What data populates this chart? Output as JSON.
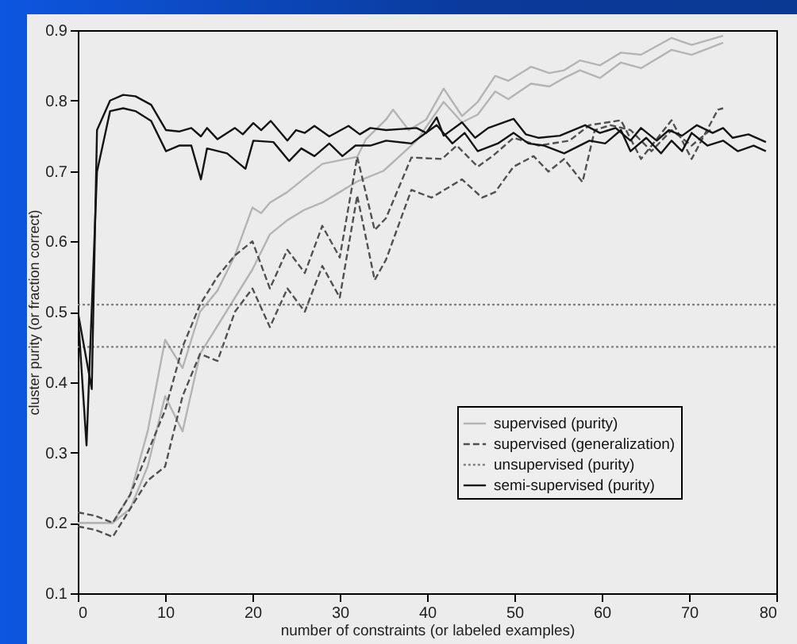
{
  "chart_data": {
    "type": "line",
    "xlabel": "number of constraints (or labeled examples)",
    "ylabel": "cluster purity (or fraction correct)",
    "xlim": [
      0,
      80
    ],
    "xticks": [
      0,
      10,
      20,
      30,
      40,
      50,
      60,
      70,
      80
    ],
    "ylim": [
      0.1,
      0.9
    ],
    "yticks": [
      0.1,
      0.2,
      0.3,
      0.4,
      0.5,
      0.6,
      0.7,
      0.8,
      0.9
    ],
    "legend": "bottom right",
    "series": [
      {
        "name": "supervised (purity)",
        "color": "#b4b4b4",
        "line_style": "solid",
        "x": [
          0,
          4,
          6,
          8,
          10,
          12,
          14,
          16,
          18,
          20,
          21,
          22,
          24,
          26,
          28,
          30,
          32,
          33,
          35.3,
          36.1,
          37.9,
          39.9,
          41.9,
          44,
          45.8,
          47.8,
          49.3,
          51.9,
          54,
          55.7,
          57.5,
          59.8,
          62.2,
          64.5,
          68,
          70.3,
          73.9
        ],
        "values": [
          0.2,
          0.2,
          0.24,
          0.33,
          0.46,
          0.42,
          0.5,
          0.53,
          0.58,
          0.648,
          0.64,
          0.655,
          0.67,
          0.69,
          0.71,
          0.715,
          0.72,
          0.745,
          0.773,
          0.787,
          0.758,
          0.773,
          0.817,
          0.778,
          0.798,
          0.835,
          0.828,
          0.848,
          0.839,
          0.843,
          0.857,
          0.85,
          0.868,
          0.865,
          0.889,
          0.879,
          0.892
        ]
      },
      {
        "color": "#b4b4b4",
        "line_style": "solid",
        "x": [
          0,
          4,
          6,
          8,
          10,
          12,
          14,
          16,
          18,
          20,
          22,
          24,
          26,
          28,
          30,
          32,
          35,
          38.8,
          41.9,
          44,
          45.8,
          47.8,
          49.3,
          51.9,
          54,
          55.7,
          57.5,
          59.8,
          62.2,
          64.5,
          68,
          70.3,
          73.9
        ],
        "values": [
          0.2,
          0.2,
          0.22,
          0.28,
          0.38,
          0.33,
          0.44,
          0.48,
          0.52,
          0.56,
          0.61,
          0.63,
          0.645,
          0.655,
          0.67,
          0.685,
          0.7,
          0.743,
          0.798,
          0.769,
          0.78,
          0.813,
          0.802,
          0.824,
          0.82,
          0.832,
          0.843,
          0.832,
          0.854,
          0.846,
          0.872,
          0.865,
          0.882
        ]
      },
      {
        "name": "supervised (generalization)",
        "color": "#505050",
        "line_style": "dashed",
        "x": [
          0,
          2,
          4,
          6,
          8,
          10,
          12,
          14,
          16,
          18,
          20,
          22,
          24,
          26,
          28,
          30,
          32,
          34,
          35.3,
          38.2,
          41.7,
          43.4,
          45.8,
          47.5,
          49.9,
          52.8,
          56.3,
          58.6,
          62.2,
          64.5,
          68,
          70.3,
          73.3,
          73.9
        ],
        "values": [
          0.215,
          0.21,
          0.2,
          0.24,
          0.3,
          0.36,
          0.45,
          0.51,
          0.55,
          0.58,
          0.6,
          0.533,
          0.588,
          0.555,
          0.622,
          0.577,
          0.72,
          0.616,
          0.633,
          0.719,
          0.717,
          0.736,
          0.706,
          0.721,
          0.747,
          0.736,
          0.743,
          0.765,
          0.772,
          0.717,
          0.772,
          0.717,
          0.787,
          0.789
        ]
      },
      {
        "color": "#505050",
        "line_style": "dashed",
        "x": [
          0,
          2,
          4,
          6,
          8,
          10,
          12,
          14,
          16,
          18,
          20,
          22,
          24,
          26,
          28,
          30,
          32,
          34,
          35.3,
          38.2,
          40.5,
          44,
          46.3,
          47.8,
          49.9,
          52.2,
          53.9,
          55.7,
          57.8,
          59.2,
          61,
          63.3,
          65.7,
          68,
          70.3,
          72.7
        ],
        "values": [
          0.195,
          0.19,
          0.18,
          0.22,
          0.26,
          0.28,
          0.38,
          0.44,
          0.43,
          0.5,
          0.533,
          0.478,
          0.533,
          0.5,
          0.565,
          0.52,
          0.665,
          0.545,
          0.574,
          0.673,
          0.662,
          0.688,
          0.662,
          0.67,
          0.706,
          0.721,
          0.699,
          0.717,
          0.684,
          0.758,
          0.765,
          0.758,
          0.728,
          0.758,
          0.736,
          0.761
        ]
      },
      {
        "name": "unsupervised (purity)",
        "color": "#808080",
        "line_style": "dotted",
        "x": [
          0,
          80
        ],
        "values": [
          0.51,
          0.51
        ]
      },
      {
        "color": "#808080",
        "line_style": "dotted",
        "x": [
          0,
          80
        ],
        "values": [
          0.45,
          0.45
        ]
      },
      {
        "name": "semi-supervised (purity)",
        "color": "#141414",
        "line_style": "solid",
        "x": [
          0,
          1.6,
          2.2,
          3.7,
          5.2,
          6.6,
          8.4,
          10.1,
          11.6,
          13,
          14.1,
          14.8,
          16,
          18,
          18.9,
          20.1,
          21,
          22.1,
          24,
          25,
          26,
          27.1,
          28.8,
          31,
          32.3,
          33.5,
          35.3,
          38.8,
          39.9,
          41.1,
          41.9,
          44,
          45.5,
          47,
          49.9,
          51.3,
          52.8,
          55.2,
          58.1,
          59.8,
          61.6,
          63.3,
          64.5,
          66.3,
          67.7,
          69.2,
          70.9,
          72.7,
          73.9,
          75,
          76.8,
          78.8
        ],
        "values": [
          0.5,
          0.39,
          0.758,
          0.8,
          0.808,
          0.806,
          0.794,
          0.758,
          0.756,
          0.761,
          0.749,
          0.761,
          0.745,
          0.761,
          0.752,
          0.768,
          0.758,
          0.771,
          0.743,
          0.758,
          0.754,
          0.764,
          0.749,
          0.764,
          0.752,
          0.761,
          0.758,
          0.761,
          0.754,
          0.776,
          0.75,
          0.769,
          0.747,
          0.761,
          0.774,
          0.752,
          0.747,
          0.75,
          0.765,
          0.754,
          0.761,
          0.743,
          0.761,
          0.743,
          0.758,
          0.75,
          0.765,
          0.754,
          0.761,
          0.747,
          0.752,
          0.741
        ]
      },
      {
        "color": "#141414",
        "line_style": "solid",
        "x": [
          0,
          1,
          2.2,
          3.7,
          5.2,
          6.6,
          8.4,
          10.1,
          11.6,
          13,
          14.1,
          14.8,
          17.1,
          19.2,
          20.1,
          22.4,
          24.2,
          25.6,
          27.1,
          28.8,
          30.3,
          31.8,
          33.5,
          35.3,
          38.2,
          41.1,
          42.9,
          44.3,
          45.8,
          48.1,
          49.9,
          51.6,
          53.4,
          55.7,
          58.6,
          60.4,
          62.2,
          63.3,
          65.1,
          66.8,
          68,
          69.2,
          70.3,
          72.1,
          73.9,
          75.6,
          77.4,
          78.8
        ],
        "values": [
          0.5,
          0.31,
          0.699,
          0.785,
          0.789,
          0.785,
          0.771,
          0.728,
          0.736,
          0.736,
          0.688,
          0.732,
          0.725,
          0.703,
          0.743,
          0.741,
          0.714,
          0.732,
          0.721,
          0.739,
          0.721,
          0.736,
          0.736,
          0.743,
          0.739,
          0.765,
          0.739,
          0.754,
          0.728,
          0.739,
          0.754,
          0.739,
          0.736,
          0.725,
          0.743,
          0.739,
          0.758,
          0.728,
          0.747,
          0.725,
          0.743,
          0.728,
          0.754,
          0.736,
          0.743,
          0.728,
          0.736,
          0.728
        ]
      }
    ]
  }
}
